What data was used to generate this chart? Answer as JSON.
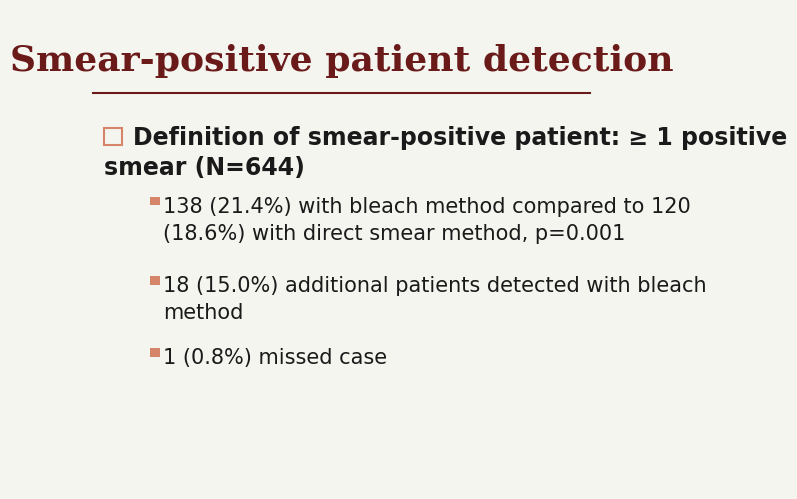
{
  "title": "Smear-positive patient detection",
  "title_color": "#6B1A1A",
  "title_fontsize": 26,
  "title_fontstyle": "bold",
  "line_color": "#6B1A1A",
  "background_color": "#F5F5F0",
  "bullet_color": "#D4856A",
  "checkbox_color": "#D4856A",
  "text_color": "#1A1A1A",
  "main_bullet_line1": "Definition of smear-positive patient: ≥ 1 positive",
  "main_bullet_line2": "smear (N=644)",
  "main_fontsize": 17,
  "sub_bullets": [
    "138 (21.4%) with bleach method compared to 120\n(18.6%) with direct smear method, p=0.001",
    "18 (15.0%) additional patients detected with bleach\nmethod",
    "1 (0.8%) missed case"
  ],
  "sub_fontsize": 15
}
